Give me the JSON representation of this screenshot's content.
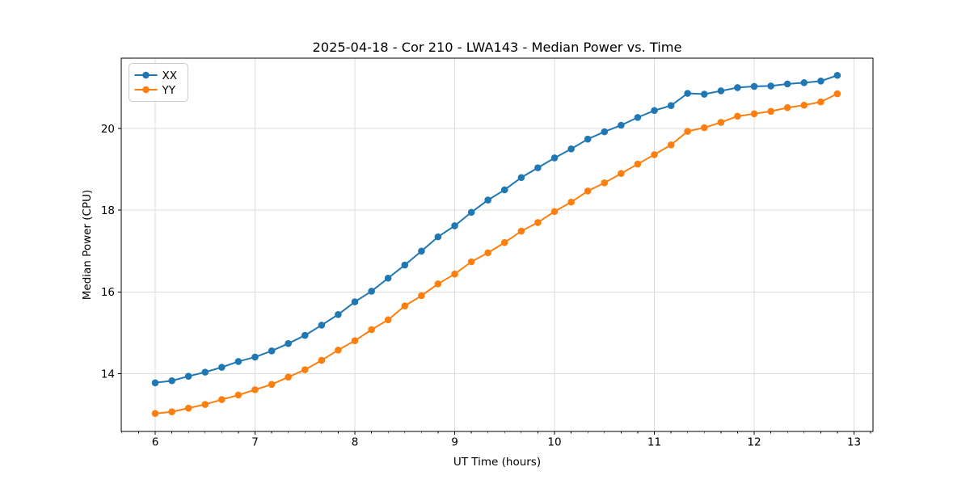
{
  "figure": {
    "title": "2025-04-18 - Cor 210 - LWA143 - Median Power vs. Time",
    "xlabel": "UT Time (hours)",
    "ylabel": "Median Power (CPU)"
  },
  "colors": {
    "series_xx": "#1f77b4",
    "series_yy": "#ff7f0e",
    "grid": "#dcdcdc",
    "axis": "#000000",
    "background": "#ffffff",
    "legend_border": "#cccccc",
    "legend_background": "rgba(255,255,255,0.85)"
  },
  "legend": {
    "entries": [
      "XX",
      "YY"
    ],
    "position": "upper-left"
  },
  "chart_data": {
    "type": "line",
    "title": "2025-04-18 - Cor 210 - LWA143 - Median Power vs. Time",
    "xlabel": "UT Time (hours)",
    "ylabel": "Median Power (CPU)",
    "xlim": [
      5.66,
      13.19
    ],
    "ylim": [
      12.59,
      21.72
    ],
    "x_ticks": [
      6,
      7,
      8,
      9,
      10,
      11,
      12,
      13
    ],
    "y_ticks": [
      14,
      16,
      18,
      20
    ],
    "x_minor_step": 0.166667,
    "grid": true,
    "legend_position": "upper-left",
    "marker": "circle",
    "x": [
      6.0,
      6.167,
      6.333,
      6.5,
      6.667,
      6.833,
      7.0,
      7.167,
      7.333,
      7.5,
      7.667,
      7.833,
      8.0,
      8.167,
      8.333,
      8.5,
      8.667,
      8.833,
      9.0,
      9.167,
      9.333,
      9.5,
      9.667,
      9.833,
      10.0,
      10.167,
      10.333,
      10.5,
      10.667,
      10.833,
      11.0,
      11.167,
      11.333,
      11.5,
      11.667,
      11.833,
      12.0,
      12.167,
      12.333,
      12.5,
      12.667,
      12.833
    ],
    "series": [
      {
        "name": "XX",
        "color": "#1f77b4",
        "values": [
          13.78,
          13.83,
          13.94,
          14.04,
          14.16,
          14.3,
          14.41,
          14.56,
          14.74,
          14.94,
          15.19,
          15.45,
          15.76,
          16.02,
          16.34,
          16.66,
          17.0,
          17.35,
          17.62,
          17.95,
          18.25,
          18.5,
          18.8,
          19.04,
          19.28,
          19.5,
          19.74,
          19.92,
          20.08,
          20.27,
          20.44,
          20.56,
          20.86,
          20.84,
          20.92,
          21.0,
          21.03,
          21.04,
          21.09,
          21.12,
          21.16,
          21.3
        ]
      },
      {
        "name": "YY",
        "color": "#ff7f0e",
        "values": [
          13.03,
          13.07,
          13.16,
          13.25,
          13.37,
          13.48,
          13.61,
          13.74,
          13.92,
          14.1,
          14.33,
          14.58,
          14.81,
          15.08,
          15.32,
          15.66,
          15.91,
          16.2,
          16.44,
          16.74,
          16.96,
          17.21,
          17.49,
          17.7,
          17.97,
          18.2,
          18.47,
          18.67,
          18.9,
          19.13,
          19.36,
          19.6,
          19.93,
          20.02,
          20.15,
          20.3,
          20.36,
          20.42,
          20.51,
          20.57,
          20.65,
          20.85
        ]
      }
    ]
  }
}
